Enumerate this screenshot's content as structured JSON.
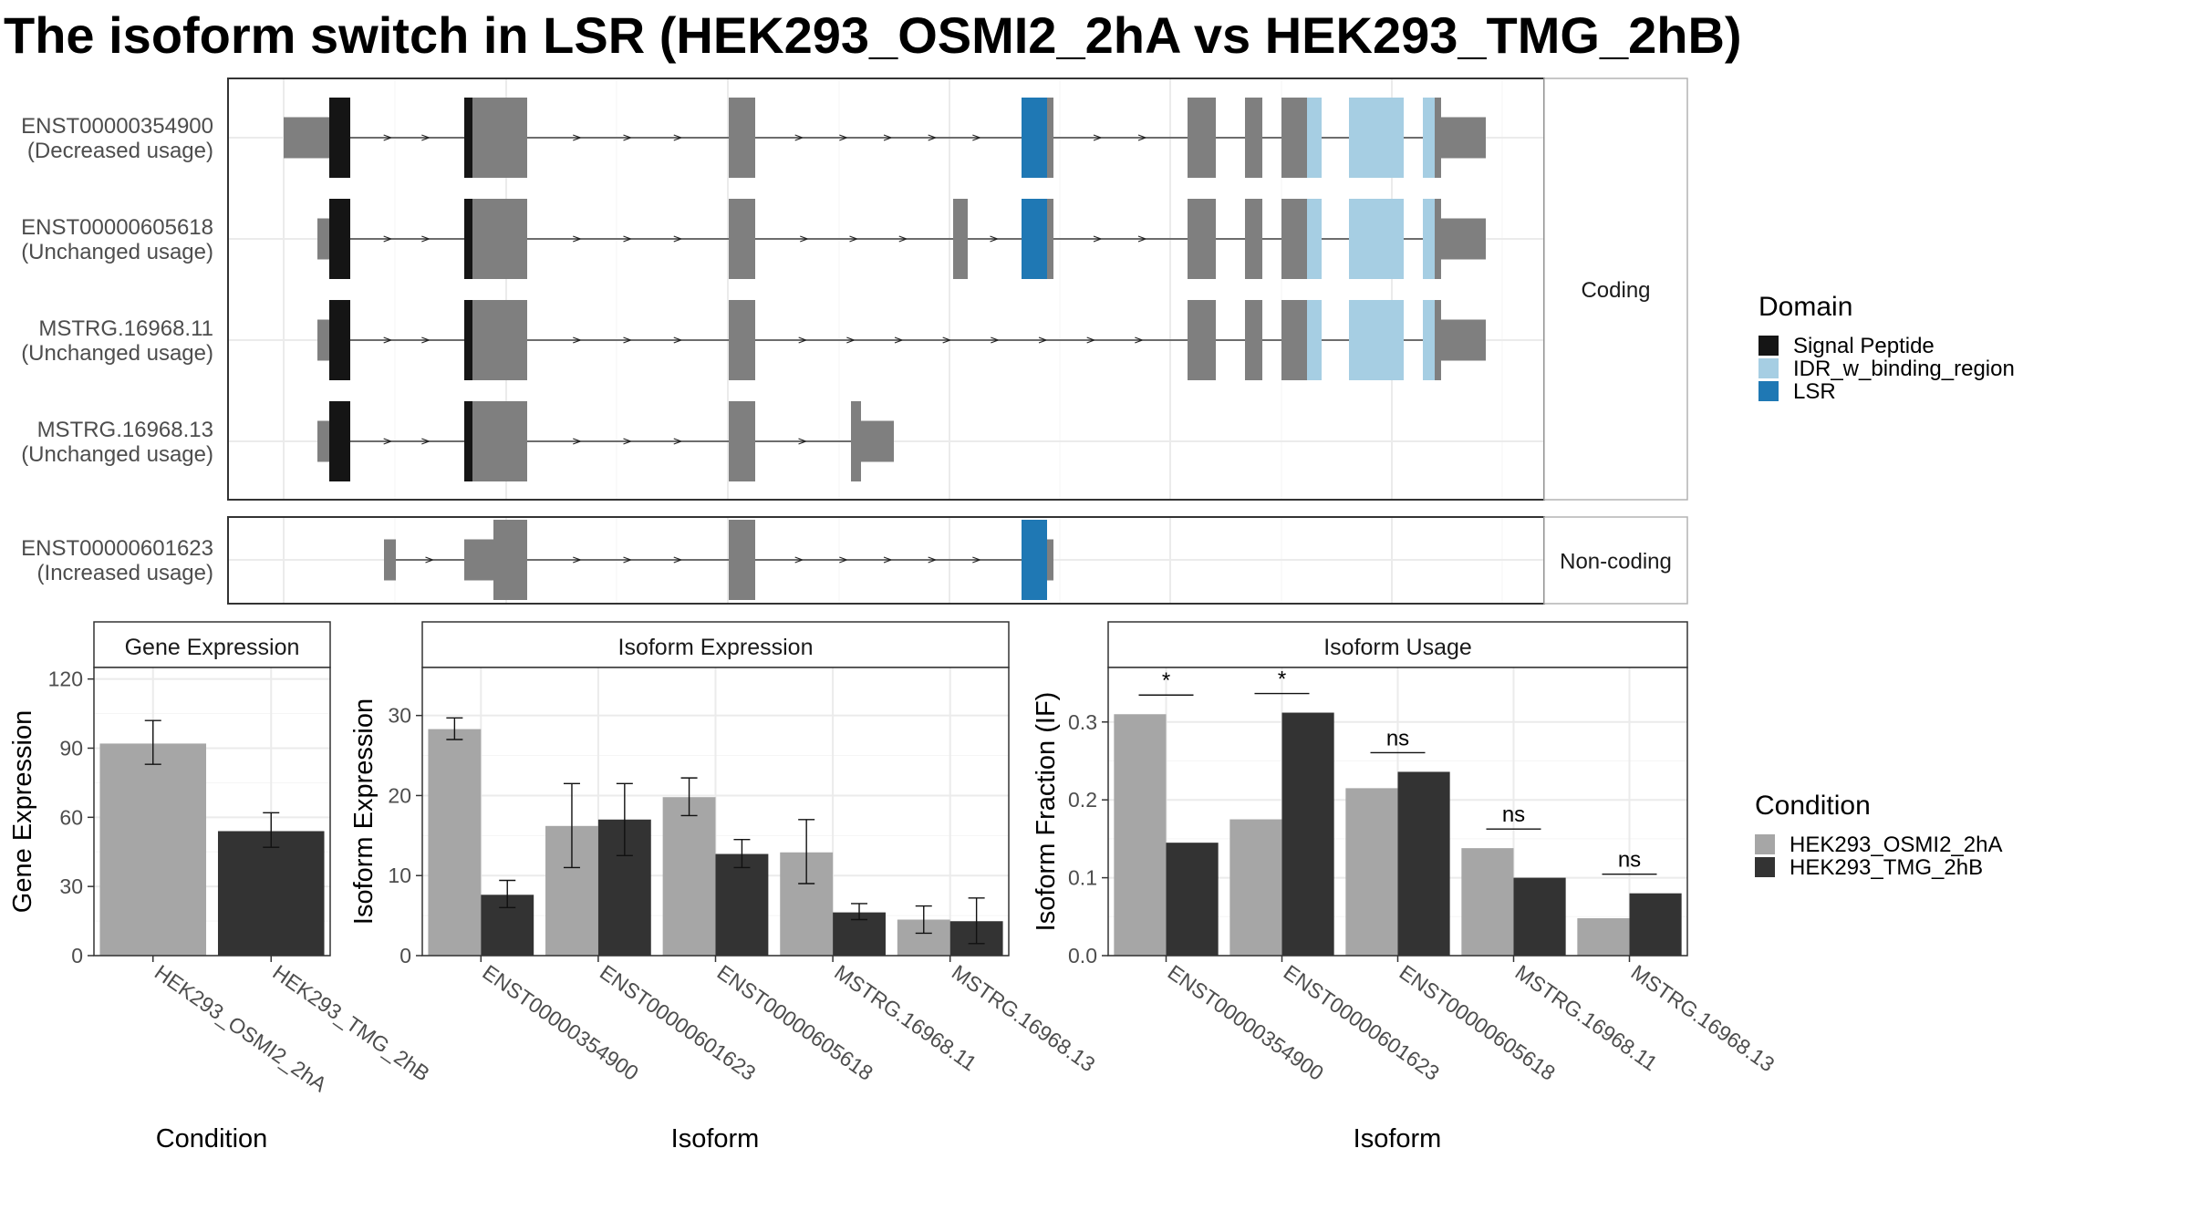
{
  "title": "The isoform switch in LSR (HEK293_OSMI2_2hA vs HEK293_TMG_2hB)",
  "colors": {
    "exon": "#7f7f7f",
    "signal_peptide": "#151515",
    "idr": "#a6cee3",
    "lsr": "#1f78b4",
    "cond_a": "#a6a6a6",
    "cond_b": "#333333",
    "grid": "#ebebeb",
    "panel_border": "#333333",
    "strip_border": "#b3b3b3"
  },
  "structure": {
    "panels": [
      {
        "label": "Coding",
        "transcripts": [
          {
            "id": "ENST00000354900",
            "usage": "(Decreased usage)"
          },
          {
            "id": "ENST00000605618",
            "usage": "(Unchanged usage)"
          },
          {
            "id": "MSTRG.16968.11",
            "usage": "(Unchanged usage)"
          },
          {
            "id": "MSTRG.16968.13",
            "usage": "(Unchanged usage)"
          }
        ]
      },
      {
        "label": "Non-coding",
        "transcripts": [
          {
            "id": "ENST00000601623",
            "usage": "(Increased usage)"
          }
        ]
      }
    ]
  },
  "legends": {
    "domain": {
      "title": "Domain",
      "items": [
        {
          "label": "Signal Peptide",
          "color": "#151515"
        },
        {
          "label": "IDR_w_binding_region",
          "color": "#a6cee3"
        },
        {
          "label": "LSR",
          "color": "#1f78b4"
        }
      ]
    },
    "condition": {
      "title": "Condition",
      "items": [
        {
          "label": "HEK293_OSMI2_2hA",
          "color": "#a6a6a6"
        },
        {
          "label": "HEK293_TMG_2hB",
          "color": "#333333"
        }
      ]
    }
  },
  "chart_data": [
    {
      "type": "bar",
      "title": "Gene Expression",
      "xlabel": "Condition",
      "ylabel": "Gene Expression",
      "ylim": [
        0,
        125
      ],
      "yticks": [
        0,
        30,
        60,
        90,
        120
      ],
      "categories": [
        "HEK293_OSMI2_2hA",
        "HEK293_TMG_2hB"
      ],
      "series": [
        {
          "values": [
            92,
            54
          ],
          "err_low": [
            83,
            47
          ],
          "err_high": [
            102,
            62
          ]
        }
      ]
    },
    {
      "type": "bar",
      "title": "Isoform Expression",
      "xlabel": "Isoform",
      "ylabel": "Isoform Expression",
      "ylim": [
        0,
        36
      ],
      "yticks": [
        0,
        10,
        20,
        30
      ],
      "categories": [
        "ENST00000354900",
        "ENST00000601623",
        "ENST00000605618",
        "MSTRG.16968.11",
        "MSTRG.16968.13"
      ],
      "series": [
        {
          "name": "HEK293_OSMI2_2hA",
          "values": [
            28.3,
            16.2,
            19.8,
            12.9,
            4.5
          ],
          "err_low": [
            27,
            11,
            17.5,
            9,
            2.8
          ],
          "err_high": [
            29.7,
            21.5,
            22.2,
            17,
            6.2
          ]
        },
        {
          "name": "HEK293_TMG_2hB",
          "values": [
            7.6,
            17,
            12.7,
            5.4,
            4.3
          ],
          "err_low": [
            6,
            12.5,
            11,
            4.5,
            1.5
          ],
          "err_high": [
            9.4,
            21.5,
            14.5,
            6.5,
            7.2
          ]
        }
      ]
    },
    {
      "type": "bar",
      "title": "Isoform Usage",
      "xlabel": "Isoform",
      "ylabel": "Isoform Fraction (IF)",
      "ylim": [
        0,
        0.37
      ],
      "yticks": [
        0,
        0.1,
        0.2,
        0.3
      ],
      "ytick_labels": [
        "0.0",
        "0.1",
        "0.2",
        "0.3"
      ],
      "categories": [
        "ENST00000354900",
        "ENST00000601623",
        "ENST00000605618",
        "MSTRG.16968.11",
        "MSTRG.16968.13"
      ],
      "series": [
        {
          "name": "HEK293_OSMI2_2hA",
          "values": [
            0.31,
            0.175,
            0.215,
            0.138,
            0.048
          ]
        },
        {
          "name": "HEK293_TMG_2hB",
          "values": [
            0.145,
            0.312,
            0.236,
            0.1,
            0.08
          ]
        }
      ],
      "significance": [
        "*",
        "*",
        "ns",
        "ns",
        "ns"
      ]
    }
  ]
}
